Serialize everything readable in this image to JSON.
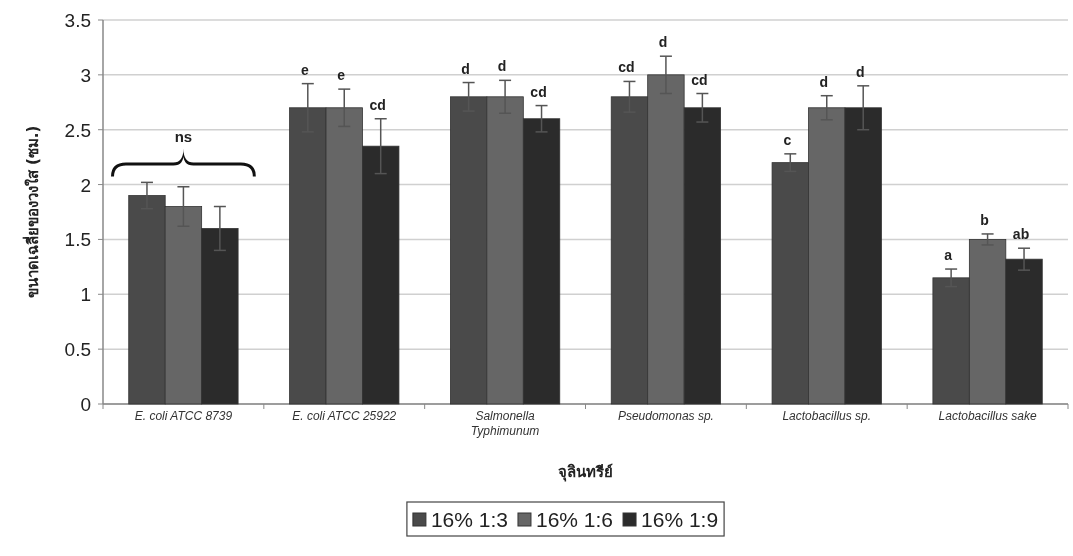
{
  "chart_data": {
    "type": "bar",
    "ylabel": "ขนาดเฉลี่ยของวงใส (ซม.)",
    "xlabel": "จุลินทรีย์",
    "categories": [
      "E. coli ATCC 8739",
      "E. coli ATCC 25922",
      "Salmonella Typhimunum",
      "Pseudomonas sp.",
      "Lactobacillus sp.",
      "Lactobacillus sake"
    ],
    "series": [
      {
        "name": "16% 1:3",
        "color": "#4a4a4a",
        "values": [
          1.9,
          2.7,
          2.8,
          2.8,
          2.2,
          1.15
        ],
        "errors": [
          0.12,
          0.22,
          0.13,
          0.14,
          0.08,
          0.08
        ]
      },
      {
        "name": "16% 1:6",
        "color": "#666666",
        "values": [
          1.8,
          2.7,
          2.8,
          3.0,
          2.7,
          1.5
        ],
        "errors": [
          0.18,
          0.17,
          0.15,
          0.17,
          0.11,
          0.05
        ]
      },
      {
        "name": "16% 1:9",
        "color": "#2b2b2b",
        "values": [
          1.6,
          2.35,
          2.6,
          2.7,
          2.7,
          1.32
        ],
        "errors": [
          0.2,
          0.25,
          0.12,
          0.13,
          0.2,
          0.1
        ]
      }
    ],
    "ylim": [
      0,
      3.5
    ],
    "yticks": [
      0,
      0.5,
      1,
      1.5,
      2,
      2.5,
      3,
      3.5
    ],
    "grid": "y",
    "legend": "bottom",
    "annotations": [
      "ns",
      "e",
      "e",
      "cd",
      "d",
      "d",
      "cd",
      "cd",
      "d",
      "cd",
      "c",
      "d",
      "d",
      "a",
      "b",
      "ab"
    ]
  }
}
